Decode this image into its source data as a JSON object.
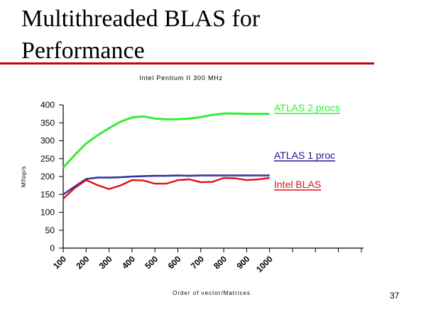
{
  "slide": {
    "title_line1": "Multithreaded BLAS for",
    "title_line2": "Performance",
    "page_number": "37"
  },
  "chart_data": {
    "type": "line",
    "title": "Intel Pentium II 300 MHz",
    "xlabel": "Order of vector/Matrices",
    "ylabel": "Mflop/s",
    "categories": [
      100,
      200,
      300,
      400,
      500,
      600,
      700,
      800,
      900,
      1000
    ],
    "ylim": [
      0,
      400
    ],
    "yticks": [
      0,
      50,
      100,
      150,
      200,
      250,
      300,
      350,
      400
    ],
    "grid": false,
    "legend": "right, inline labels",
    "series": [
      {
        "name": "ATLAS 2 procs",
        "color": "#33ee33",
        "x": [
          100,
          150,
          200,
          250,
          300,
          350,
          400,
          450,
          500,
          550,
          600,
          650,
          700,
          750,
          800,
          850,
          900,
          950,
          1000
        ],
        "y": [
          225,
          260,
          292,
          315,
          335,
          353,
          365,
          368,
          362,
          360,
          360,
          362,
          366,
          372,
          376,
          376,
          375,
          375,
          375
        ]
      },
      {
        "name": "ATLAS 1 proc",
        "color": "#1a1a8c",
        "x": [
          100,
          150,
          200,
          250,
          300,
          350,
          400,
          450,
          500,
          550,
          600,
          650,
          700,
          750,
          800,
          850,
          900,
          950,
          1000
        ],
        "y": [
          150,
          172,
          193,
          197,
          197,
          198,
          200,
          201,
          202,
          202,
          203,
          202,
          203,
          203,
          203,
          203,
          203,
          203,
          203
        ]
      },
      {
        "name": "Intel BLAS",
        "color": "#dd1111",
        "x": [
          100,
          150,
          200,
          250,
          300,
          350,
          400,
          450,
          500,
          550,
          600,
          650,
          700,
          750,
          800,
          850,
          900,
          950,
          1000
        ],
        "y": [
          138,
          168,
          190,
          176,
          165,
          175,
          190,
          189,
          180,
          180,
          190,
          192,
          184,
          185,
          196,
          195,
          190,
          192,
          196
        ]
      }
    ]
  }
}
